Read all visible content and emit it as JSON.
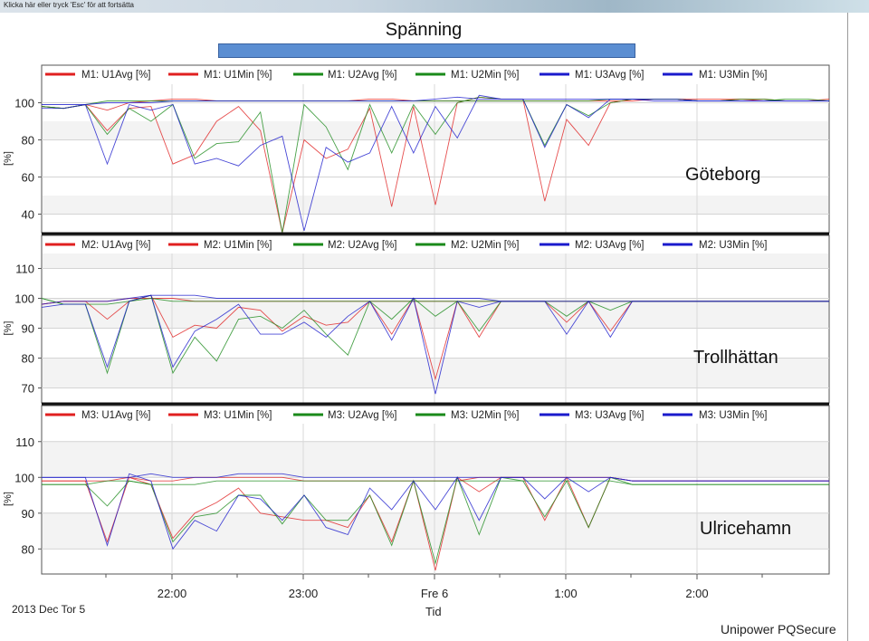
{
  "window": {
    "titlebar_text": "Klicka här eller tryck 'Esc' för att fortsätta",
    "chart_title": "Spänning",
    "date_label": "2013 Dec Tor 5",
    "xlabel": "Tid",
    "footer": "Unipower PQSecure"
  },
  "colors": {
    "red": "#e02020",
    "green": "#1a8a1a",
    "blue": "#1a1acc",
    "highlight": "#ffffff"
  },
  "chart_data": [
    {
      "type": "line",
      "annotation": "Göteborg",
      "ylabel": "[%]",
      "yticks": [
        40,
        60,
        80,
        100
      ],
      "ylim": [
        30,
        110
      ],
      "x_ticks": [
        "22:00",
        "23:00",
        "Fre 6",
        "1:00",
        "2:00"
      ],
      "legend": [
        "M1: U1Avg [%]",
        "M1: U1Min [%]",
        "M1: U2Avg [%]",
        "M1: U2Min [%]",
        "M1: U3Avg [%]",
        "M1: U3Min [%]"
      ],
      "series": [
        {
          "name": "M1: U1Avg [%]",
          "color": "red",
          "values": [
            98,
            97,
            99,
            96,
            100,
            101,
            102,
            102,
            101,
            101,
            101,
            101,
            101,
            101,
            101,
            102,
            102,
            101,
            101,
            101,
            101,
            101,
            101,
            101,
            101,
            101,
            101,
            101,
            102,
            102,
            102,
            102,
            102,
            101,
            101,
            101,
            102
          ]
        },
        {
          "name": "M1: U1Min [%]",
          "color": "red",
          "values": [
            98,
            97,
            99,
            85,
            97,
            98,
            67,
            72,
            90,
            98,
            85,
            29,
            80,
            70,
            75,
            97,
            44,
            98,
            45,
            100,
            103,
            102,
            102,
            47,
            91,
            77,
            100,
            102,
            102,
            102,
            101,
            101,
            102,
            102,
            101,
            101,
            101
          ]
        },
        {
          "name": "M1: U2Avg [%]",
          "color": "green",
          "values": [
            98,
            97,
            99,
            101,
            101,
            101,
            101,
            101,
            101,
            101,
            101,
            101,
            101,
            101,
            101,
            101,
            101,
            101,
            101,
            101,
            101,
            101,
            101,
            101,
            101,
            101,
            102,
            102,
            102,
            102,
            101,
            101,
            101,
            101,
            102,
            102,
            101
          ]
        },
        {
          "name": "M1: U2Min [%]",
          "color": "green",
          "values": [
            98,
            97,
            99,
            83,
            97,
            90,
            99,
            70,
            78,
            79,
            95,
            30,
            99,
            87,
            64,
            99,
            73,
            99,
            83,
            100,
            103,
            102,
            102,
            77,
            99,
            93,
            100,
            102,
            102,
            102,
            101,
            101,
            102,
            102,
            101,
            101,
            101
          ]
        },
        {
          "name": "M1: U3Avg [%]",
          "color": "blue",
          "values": [
            99,
            99,
            99,
            100,
            100,
            100,
            101,
            101,
            101,
            101,
            101,
            101,
            101,
            101,
            101,
            101,
            101,
            101,
            102,
            103,
            102,
            102,
            102,
            102,
            102,
            102,
            102,
            102,
            101,
            101,
            101,
            101,
            101,
            101,
            101,
            101,
            101
          ]
        },
        {
          "name": "M1: U3Min [%]",
          "color": "blue",
          "values": [
            97,
            97,
            99,
            67,
            99,
            96,
            99,
            67,
            70,
            66,
            77,
            82,
            31,
            76,
            68,
            73,
            98,
            73,
            98,
            81,
            104,
            102,
            102,
            76,
            99,
            92,
            102,
            102,
            102,
            102,
            101,
            101,
            101,
            101,
            101,
            101,
            101
          ]
        }
      ]
    },
    {
      "type": "line",
      "annotation": "Trollhättan",
      "ylabel": "[%]",
      "yticks": [
        70,
        80,
        90,
        100,
        110
      ],
      "ylim": [
        65,
        115
      ],
      "x_ticks": [
        "22:00",
        "23:00",
        "Fre 6",
        "1:00",
        "2:00"
      ],
      "legend": [
        "M2: U1Avg [%]",
        "M2: U1Min [%]",
        "M2: U2Avg [%]",
        "M2: U2Min [%]",
        "M2: U3Avg [%]",
        "M2: U3Min [%]"
      ],
      "series": [
        {
          "name": "M2: U1Avg [%]",
          "color": "red",
          "values": [
            98,
            99,
            99,
            99,
            100,
            100,
            100,
            99,
            99,
            99,
            99,
            99,
            99,
            99,
            99,
            99,
            99,
            99,
            99,
            99,
            99,
            99,
            99,
            99,
            99,
            99,
            99,
            99,
            99,
            99,
            99,
            99,
            99,
            99,
            99,
            99,
            99
          ]
        },
        {
          "name": "M2: U1Min [%]",
          "color": "red",
          "values": [
            98,
            99,
            99,
            93,
            99,
            101,
            87,
            91,
            90,
            97,
            96,
            89,
            94,
            91,
            92,
            99,
            88,
            100,
            73,
            99,
            87,
            99,
            99,
            99,
            92,
            99,
            89,
            99,
            99,
            99,
            99,
            99,
            99,
            99,
            99,
            99,
            99
          ]
        },
        {
          "name": "M2: U2Avg [%]",
          "color": "green",
          "values": [
            100,
            98,
            98,
            98,
            99,
            100,
            99,
            99,
            99,
            99,
            99,
            99,
            99,
            99,
            99,
            99,
            99,
            99,
            99,
            99,
            99,
            99,
            99,
            99,
            99,
            99,
            99,
            99,
            99,
            99,
            99,
            99,
            99,
            99,
            99,
            99,
            99
          ]
        },
        {
          "name": "M2: U2Min [%]",
          "color": "green",
          "values": [
            100,
            98,
            98,
            75,
            99,
            101,
            75,
            87,
            79,
            93,
            94,
            90,
            96,
            88,
            81,
            99,
            93,
            100,
            94,
            99,
            89,
            99,
            99,
            99,
            94,
            99,
            96,
            99,
            99,
            99,
            99,
            99,
            99,
            99,
            99,
            99,
            99
          ]
        },
        {
          "name": "M2: U3Avg [%]",
          "color": "blue",
          "values": [
            98,
            99,
            99,
            99,
            100,
            101,
            101,
            101,
            100,
            100,
            100,
            100,
            100,
            100,
            100,
            100,
            100,
            100,
            100,
            100,
            100,
            99,
            99,
            99,
            99,
            99,
            99,
            99,
            99,
            99,
            99,
            99,
            99,
            99,
            99,
            99,
            99
          ]
        },
        {
          "name": "M2: U3Min [%]",
          "color": "blue",
          "values": [
            97,
            98,
            98,
            77,
            99,
            101,
            77,
            89,
            93,
            98,
            88,
            88,
            92,
            87,
            94,
            99,
            86,
            100,
            68,
            99,
            97,
            99,
            99,
            99,
            88,
            99,
            87,
            99,
            99,
            99,
            99,
            99,
            99,
            99,
            99,
            99,
            99
          ]
        }
      ]
    },
    {
      "type": "line",
      "annotation": "Ulricehamn",
      "ylabel": "[%]",
      "yticks": [
        80,
        90,
        100,
        110
      ],
      "ylim": [
        73,
        115
      ],
      "x_ticks": [
        "22:00",
        "23:00",
        "Fre 6",
        "1:00",
        "2:00"
      ],
      "legend": [
        "M3: U1Avg [%]",
        "M3: U1Min [%]",
        "M3: U2Avg [%]",
        "M3: U2Min [%]",
        "M3: U3Avg [%]",
        "M3: U3Min [%]"
      ],
      "series": [
        {
          "name": "M3: U1Avg [%]",
          "color": "red",
          "values": [
            99,
            99,
            99,
            99,
            100,
            99,
            99,
            100,
            100,
            100,
            100,
            100,
            99,
            99,
            99,
            99,
            99,
            99,
            99,
            99,
            100,
            100,
            100,
            100,
            100,
            100,
            100,
            99,
            99,
            99,
            99,
            99,
            99,
            99,
            99,
            99,
            99
          ]
        },
        {
          "name": "M3: U1Min [%]",
          "color": "red",
          "values": [
            99,
            99,
            99,
            82,
            100,
            98,
            83,
            90,
            93,
            97,
            90,
            89,
            88,
            88,
            86,
            95,
            82,
            99,
            74,
            100,
            96,
            100,
            100,
            88,
            100,
            86,
            100,
            99,
            99,
            99,
            99,
            99,
            99,
            99,
            99,
            99,
            99
          ]
        },
        {
          "name": "M3: U2Avg [%]",
          "color": "green",
          "values": [
            98,
            98,
            98,
            99,
            99,
            98,
            98,
            98,
            99,
            99,
            99,
            99,
            99,
            99,
            99,
            99,
            99,
            99,
            99,
            99,
            99,
            99,
            99,
            99,
            99,
            99,
            99,
            98,
            98,
            98,
            98,
            98,
            98,
            98,
            98,
            98,
            98
          ]
        },
        {
          "name": "M3: U2Min [%]",
          "color": "green",
          "values": [
            98,
            98,
            98,
            92,
            99,
            98,
            82,
            89,
            90,
            95,
            95,
            87,
            95,
            88,
            88,
            95,
            81,
            99,
            76,
            100,
            84,
            100,
            99,
            89,
            99,
            86,
            100,
            98,
            98,
            98,
            98,
            98,
            98,
            98,
            98,
            98,
            98
          ]
        },
        {
          "name": "M3: U3Avg [%]",
          "color": "blue",
          "values": [
            100,
            100,
            100,
            100,
            100,
            101,
            100,
            100,
            100,
            101,
            101,
            101,
            100,
            100,
            100,
            100,
            100,
            100,
            100,
            100,
            100,
            100,
            100,
            100,
            100,
            100,
            100,
            99,
            99,
            99,
            99,
            99,
            99,
            99,
            99,
            99,
            99
          ]
        },
        {
          "name": "M3: U3Min [%]",
          "color": "blue",
          "values": [
            100,
            100,
            100,
            81,
            101,
            99,
            80,
            88,
            85,
            95,
            94,
            88,
            95,
            86,
            84,
            97,
            91,
            99,
            91,
            100,
            88,
            100,
            100,
            94,
            100,
            96,
            100,
            99,
            99,
            99,
            99,
            99,
            99,
            99,
            99,
            99,
            99
          ]
        }
      ]
    }
  ]
}
